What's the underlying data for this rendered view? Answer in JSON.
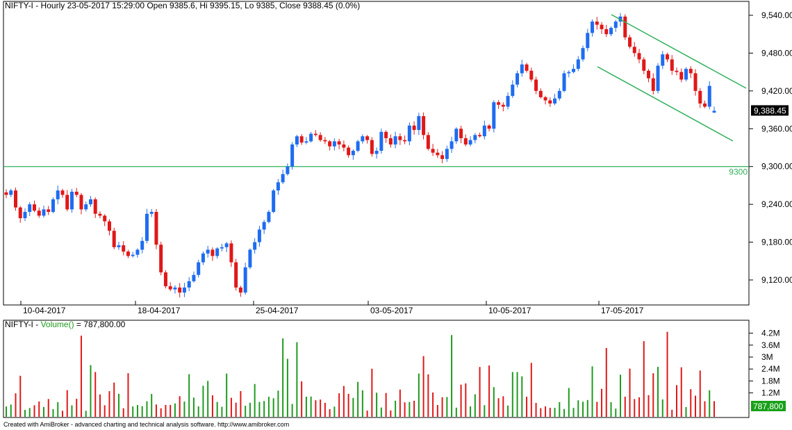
{
  "price_panel": {
    "header": "NIFTY-I - Hourly 23-05-2017 15:29:00 Open 9385.6, Hi 9395.15, Lo 9385, Close 9388.45 (0.0%)",
    "last_price_label": "9,388.45",
    "support_label": "9300",
    "y_ticks": [
      "9,540.00",
      "9,480.00",
      "9,420.00",
      "9,360.00",
      "9,300.00",
      "9,240.00",
      "9,180.00",
      "9,120.00"
    ],
    "x_ticks": [
      "10-04-2017",
      "18-04-2017",
      "25-04-2017",
      "03-05-2017",
      "10-05-2017",
      "17-05-2017"
    ]
  },
  "volume_panel": {
    "header_prefix": "NIFTY-I - ",
    "header_series": "Volume()",
    "header_value": " = 787,800.00",
    "last_volume_label": "787,800",
    "y_ticks": [
      "4.2M",
      "3.6M",
      "3M",
      "2.4M",
      "1.8M",
      "1.2M"
    ]
  },
  "footer": "Created with AmiBroker - advanced charting and technical analysis software. http://www.amibroker.com",
  "colors": {
    "up": "#1e6cf0",
    "down": "#e01818",
    "vol_up": "#1e9a1e",
    "vol_down": "#e01818",
    "trendline": "#2eb05a",
    "last_price_bg": "#000000",
    "last_volume_bg": "#18a018"
  },
  "chart_data": [
    {
      "type": "candlestick",
      "title": "NIFTY-I - Hourly",
      "ylim": [
        9085,
        9560
      ],
      "last": {
        "date": "23-05-2017 15:29:00",
        "open": 9385.6,
        "high": 9395.15,
        "low": 9385,
        "close": 9388.45
      },
      "support_level": 9300,
      "closes_approx": [
        9255,
        9262,
        9235,
        9218,
        9228,
        9240,
        9230,
        9222,
        9232,
        9228,
        9248,
        9262,
        9255,
        9232,
        9260,
        9255,
        9232,
        9240,
        9248,
        9225,
        9222,
        9213,
        9198,
        9172,
        9175,
        9165,
        9158,
        9160,
        9168,
        9182,
        9225,
        9228,
        9176,
        9132,
        9110,
        9105,
        9108,
        9100,
        9108,
        9118,
        9128,
        9148,
        9162,
        9168,
        9158,
        9170,
        9172,
        9178,
        9148,
        9108,
        9100,
        9140,
        9168,
        9180,
        9200,
        9212,
        9228,
        9262,
        9275,
        9288,
        9300,
        9335,
        9348,
        9338,
        9340,
        9352,
        9350,
        9342,
        9340,
        9332,
        9340,
        9335,
        9330,
        9318,
        9325,
        9340,
        9348,
        9342,
        9320,
        9325,
        9355,
        9345,
        9335,
        9348,
        9342,
        9340,
        9365,
        9358,
        9380,
        9350,
        9328,
        9322,
        9318,
        9312,
        9328,
        9340,
        9360,
        9345,
        9335,
        9342,
        9350,
        9348,
        9365,
        9360,
        9402,
        9398,
        9395,
        9412,
        9430,
        9448,
        9462,
        9452,
        9438,
        9420,
        9410,
        9405,
        9400,
        9408,
        9420,
        9448,
        9450,
        9455,
        9470,
        9488,
        9512,
        9530,
        9525,
        9518,
        9510,
        9520,
        9530,
        9538,
        9505,
        9490,
        9480,
        9470,
        9452,
        9440,
        9420,
        9460,
        9478,
        9470,
        9452,
        9450,
        9438,
        9455,
        9448,
        9420,
        9400,
        9395,
        9428,
        9388
      ]
    },
    {
      "type": "bar",
      "title": "Volume()",
      "ylim": [
        0,
        4500000
      ],
      "last_value": 787800
    }
  ]
}
